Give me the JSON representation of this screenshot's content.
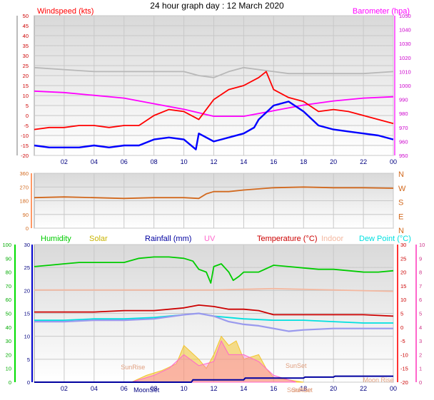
{
  "title": "24 hour graph day : 12 March 2020",
  "colors": {
    "wind": "#ff0000",
    "baro": "#ff00ff",
    "gust_avg": "#0000ff",
    "gray_series": "#b8b8b8",
    "direction": "#d2691e",
    "humidity": "#00cc00",
    "solar": "#f2c430",
    "rain": "#0000a0",
    "uv": "#ff66cc",
    "temperature": "#cc0000",
    "indoor": "#f4b8a0",
    "dew": "#00e0e0",
    "lavender": "#9999ee"
  },
  "chart_data": [
    {
      "type": "line",
      "x_ticks": [
        "02",
        "04",
        "06",
        "08",
        "10",
        "12",
        "14",
        "16",
        "18",
        "20",
        "22",
        "00"
      ],
      "xlim": [
        0,
        24
      ],
      "left_label": "Windspeed (kts)",
      "right_label": "Barometer (hpa)",
      "left_ticks": [
        "-20",
        "-15",
        "-10",
        "-5",
        "0",
        "5",
        "10",
        "15",
        "20",
        "25",
        "30",
        "35",
        "40",
        "45",
        "50"
      ],
      "left_ylim": [
        -20,
        50
      ],
      "right_ticks": [
        "950",
        "960",
        "970",
        "980",
        "990",
        "1000",
        "1010",
        "1020",
        "1030",
        "1040",
        "1050"
      ],
      "right_ylim": [
        950,
        1050
      ],
      "grid": true,
      "series": [
        {
          "color_key": "baro",
          "axis": "right",
          "x": [
            0,
            2,
            4,
            6,
            8,
            10,
            12,
            14,
            16,
            18,
            20,
            22,
            24
          ],
          "values": [
            996,
            995,
            993,
            991,
            987,
            983,
            978,
            978,
            982,
            986,
            989,
            991,
            992
          ]
        },
        {
          "color_key": "gray_series",
          "axis": "left",
          "x": [
            0,
            2,
            4,
            6,
            8,
            10,
            11,
            12,
            13,
            14,
            15,
            16,
            17,
            18,
            20,
            22,
            24
          ],
          "values": [
            24,
            23,
            22,
            22,
            22,
            22,
            20,
            19,
            22,
            24,
            23,
            22,
            21,
            21,
            21,
            21,
            22
          ]
        },
        {
          "color_key": "wind",
          "axis": "left",
          "x": [
            0,
            1,
            2,
            3,
            4,
            5,
            6,
            7,
            8,
            9,
            10,
            11,
            12,
            13,
            14,
            15,
            15.5,
            16,
            17,
            18,
            19,
            20,
            21,
            22,
            23,
            24
          ],
          "values": [
            -7,
            -6,
            -6,
            -5,
            -5,
            -6,
            -5,
            -5,
            0,
            3,
            2,
            -2,
            8,
            13,
            15,
            19,
            22,
            13,
            9,
            7,
            2,
            3,
            2,
            0,
            -2,
            -4
          ]
        },
        {
          "color_key": "gust_avg",
          "axis": "left",
          "x": [
            0,
            1,
            2,
            3,
            4,
            5,
            6,
            7,
            8,
            9,
            10,
            10.8,
            11,
            11.5,
            12,
            12.5,
            13,
            14,
            14.7,
            15,
            16,
            17,
            18,
            19,
            20,
            21,
            22,
            23,
            24
          ],
          "values": [
            -15,
            -16,
            -16,
            -16,
            -15,
            -16,
            -15,
            -15,
            -12,
            -11,
            -12,
            -17,
            -9,
            -11,
            -13,
            -12,
            -11,
            -9,
            -6,
            -2,
            5,
            7,
            2,
            -5,
            -7,
            -8,
            -9,
            -10,
            -12
          ]
        }
      ]
    },
    {
      "type": "line",
      "right_labels": [
        "N",
        "W",
        "S",
        "E",
        "N"
      ],
      "left_ticks": [
        "0",
        "90",
        "180",
        "270",
        "360"
      ],
      "ylim": [
        0,
        360
      ],
      "series": [
        {
          "color_key": "direction",
          "x": [
            0,
            2,
            4,
            6,
            8,
            10,
            11,
            11.5,
            12,
            13,
            14,
            16,
            18,
            20,
            22,
            24
          ],
          "values": [
            200,
            205,
            200,
            195,
            200,
            200,
            195,
            225,
            240,
            240,
            250,
            265,
            270,
            265,
            265,
            262
          ]
        }
      ]
    },
    {
      "type": "line",
      "legend": [
        "Humidity",
        "Solar",
        "Rainfall (mm)",
        "UV",
        "Temperature (°C)",
        "Indoor",
        "Dew Point (°C)"
      ],
      "left1_ticks": [
        "0",
        "10",
        "20",
        "30",
        "40",
        "50",
        "60",
        "70",
        "80",
        "90",
        "100"
      ],
      "left1_ylim": [
        0,
        100
      ],
      "left2_ticks": [
        "0",
        "5",
        "10",
        "15",
        "20",
        "25",
        "30"
      ],
      "left2_ylim": [
        0,
        30
      ],
      "right1_ticks": [
        "-20",
        "-15",
        "-10",
        "-5",
        "0",
        "5",
        "10",
        "15",
        "20",
        "25",
        "30"
      ],
      "right1_ylim": [
        -20,
        30
      ],
      "right2_ticks": [
        "0",
        "1",
        "2",
        "3",
        "4",
        "5",
        "6",
        "7",
        "8",
        "9",
        "10"
      ],
      "right2_ylim": [
        0,
        10
      ],
      "annotations": [
        "SunRise",
        "SunSet",
        "MoonSet",
        "SunRise",
        "SunSet",
        "Moon Rise"
      ],
      "series": [
        {
          "color_key": "humidity",
          "axis": "left1",
          "x": [
            0,
            1,
            2,
            3,
            4,
            5,
            6,
            7,
            8,
            9,
            10,
            10.6,
            11,
            11.5,
            11.8,
            12,
            12.5,
            13,
            13.3,
            13.7,
            14,
            15,
            16,
            17,
            18,
            19,
            20,
            22,
            23,
            24
          ],
          "values": [
            84,
            85,
            86,
            87,
            87,
            87,
            87,
            90,
            91,
            91,
            90,
            88,
            82,
            80,
            72,
            84,
            86,
            80,
            74,
            77,
            80,
            80,
            85,
            84,
            83,
            82,
            82,
            80,
            80,
            81
          ]
        },
        {
          "color_key": "indoor",
          "axis": "left1",
          "x": [
            0,
            4,
            8,
            12,
            16,
            20,
            24
          ],
          "values": [
            67,
            67,
            67,
            67,
            68,
            67,
            66
          ]
        },
        {
          "color_key": "temperature",
          "axis": "left1",
          "x": [
            0,
            2,
            4,
            6,
            8,
            10,
            11,
            12,
            13,
            14,
            15,
            16,
            18,
            20,
            22,
            24
          ],
          "values": [
            51,
            51,
            51,
            52,
            52,
            54,
            56,
            55,
            53,
            53,
            52,
            49,
            49,
            49,
            49,
            48
          ]
        },
        {
          "color_key": "dew",
          "axis": "left1",
          "x": [
            0,
            2,
            4,
            6,
            8,
            10,
            11,
            12,
            13,
            14,
            16,
            18,
            20,
            22,
            24
          ],
          "values": [
            45,
            45,
            46,
            46,
            47,
            49,
            50,
            48,
            47,
            46,
            45,
            45,
            44,
            43,
            43
          ]
        },
        {
          "color_key": "lavender",
          "axis": "left1",
          "x": [
            0,
            2,
            4,
            6,
            8,
            10,
            11,
            12,
            13,
            14,
            15,
            16,
            17,
            18,
            20,
            22,
            24
          ],
          "values": [
            44,
            44,
            45,
            45,
            46,
            49,
            50,
            48,
            44,
            42,
            41,
            39,
            37,
            38,
            39,
            39,
            39
          ]
        },
        {
          "color_key": "solar",
          "axis": "left2",
          "x": [
            6.5,
            7.5,
            8.5,
            9.5,
            10,
            11,
            11.5,
            12,
            12.5,
            13,
            13.5,
            14,
            15,
            15.5,
            16,
            17,
            18
          ],
          "values": [
            0,
            1.5,
            2.5,
            4,
            8,
            5,
            3,
            6,
            10,
            8,
            9,
            5,
            6,
            3,
            1,
            0.5,
            0
          ]
        },
        {
          "color_key": "uv",
          "axis": "right2",
          "x": [
            6.5,
            8,
            9,
            10,
            11,
            12,
            12.5,
            13,
            14,
            15,
            16,
            17.5
          ],
          "values": [
            0,
            0.5,
            1,
            2,
            1.2,
            1.5,
            3,
            2,
            2,
            1.5,
            0.5,
            0
          ]
        },
        {
          "color_key": "rain",
          "axis": "left2",
          "x": [
            0,
            10.5,
            10.6,
            14,
            14.1,
            18,
            18.1,
            20,
            20.1,
            24
          ],
          "values": [
            0,
            0,
            0.5,
            0.5,
            0.9,
            0.9,
            1.1,
            1.1,
            1.3,
            1.3
          ]
        }
      ]
    }
  ]
}
